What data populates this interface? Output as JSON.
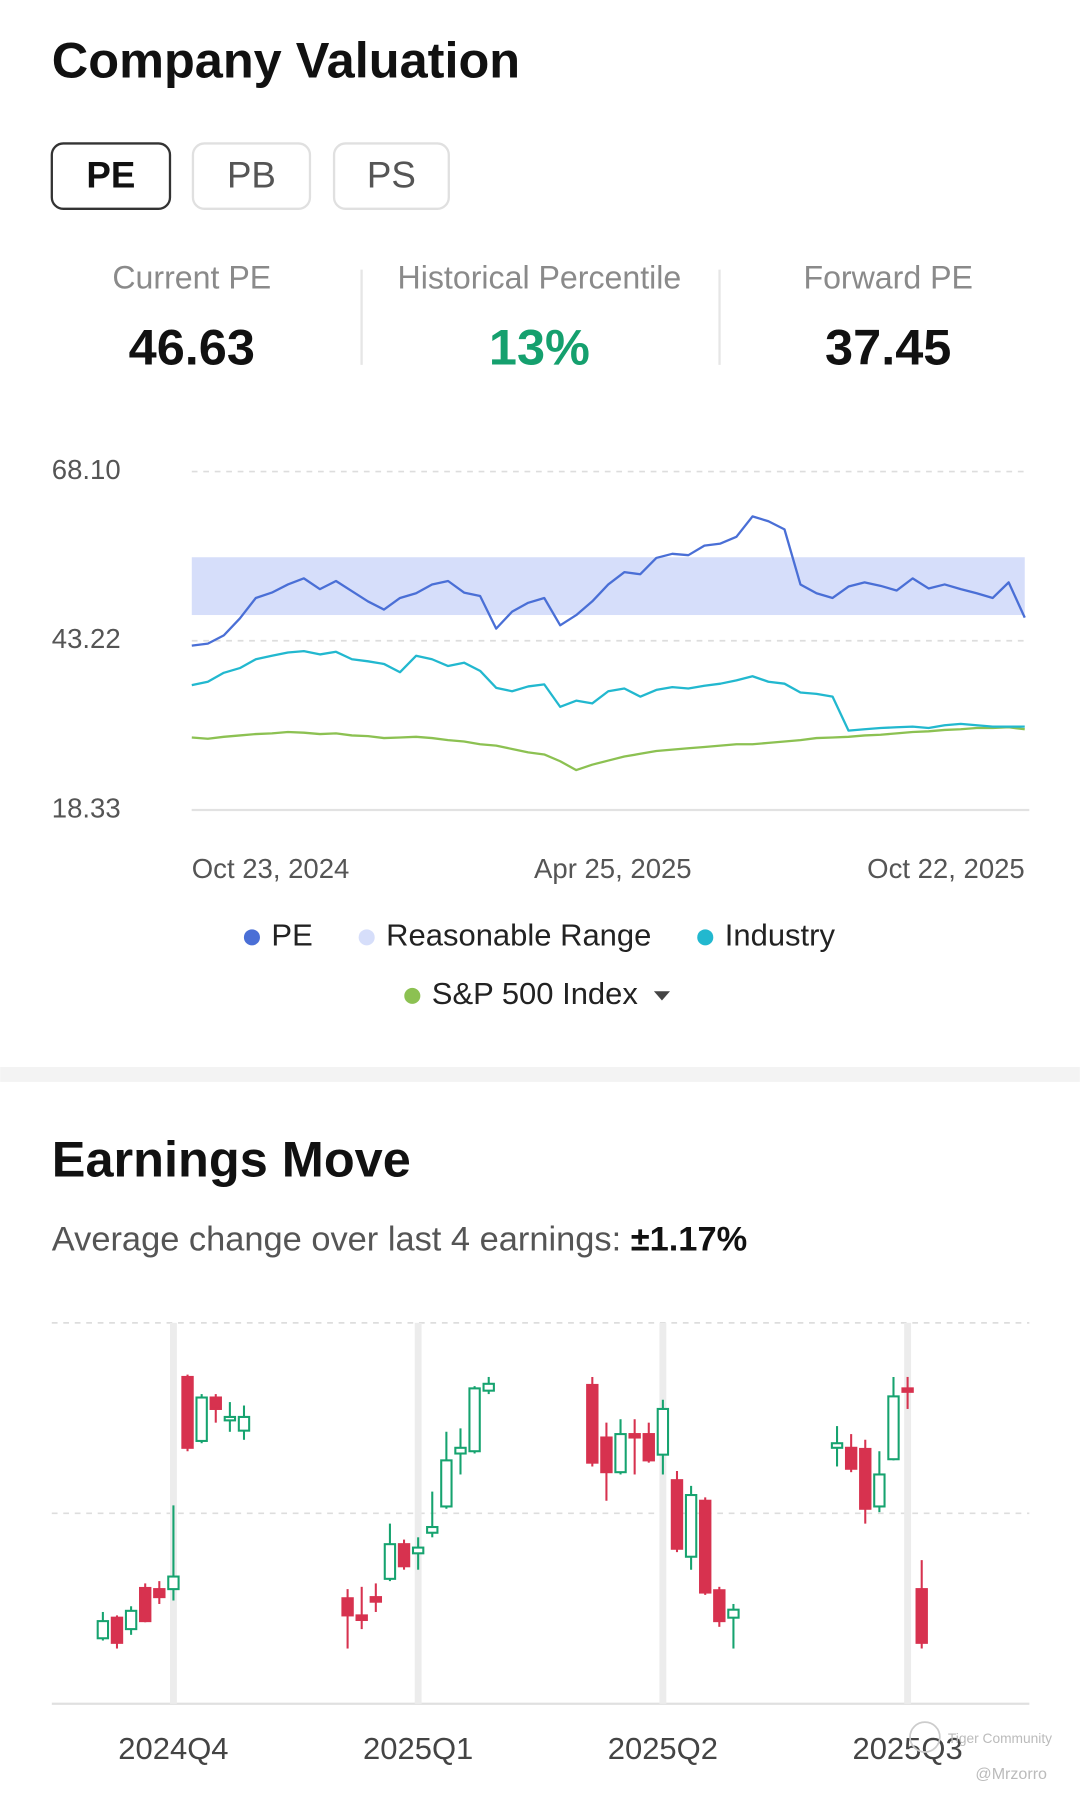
{
  "valuation": {
    "title": "Company Valuation",
    "tabs": [
      {
        "label": "PE",
        "selected": true
      },
      {
        "label": "PB"
      },
      {
        "label": "PS"
      }
    ],
    "stats": [
      {
        "label": "Current PE",
        "value": "46.63",
        "color": "#111111"
      },
      {
        "label": "Historical Percentile",
        "value": "13%",
        "color": "#15a06e"
      },
      {
        "label": "Forward PE",
        "value": "37.45",
        "color": "#111111"
      }
    ]
  },
  "earnings": {
    "title": "Earnings Move",
    "subtitle": "Average change over last 4 earnings:",
    "average": "±1.17%"
  },
  "watermark": {
    "brand": "Tiger Community",
    "user": "@Mrzorro"
  },
  "chart_data": [
    {
      "type": "line",
      "x": [
        "2024-10-23",
        "2024-10-30",
        "2024-11-06",
        "2024-11-13",
        "2024-11-20",
        "2024-11-27",
        "2024-12-04",
        "2024-12-11",
        "2024-12-18",
        "2024-12-25",
        "2025-01-01",
        "2025-01-08",
        "2025-01-15",
        "2025-01-22",
        "2025-01-29",
        "2025-02-05",
        "2025-02-12",
        "2025-02-19",
        "2025-02-26",
        "2025-03-05",
        "2025-03-12",
        "2025-03-19",
        "2025-03-26",
        "2025-04-02",
        "2025-04-09",
        "2025-04-16",
        "2025-04-23",
        "2025-04-30",
        "2025-05-07",
        "2025-05-14",
        "2025-05-21",
        "2025-05-28",
        "2025-06-04",
        "2025-06-11",
        "2025-06-18",
        "2025-06-25",
        "2025-07-02",
        "2025-07-09",
        "2025-07-16",
        "2025-07-23",
        "2025-07-30",
        "2025-08-06",
        "2025-08-13",
        "2025-08-20",
        "2025-08-27",
        "2025-09-03",
        "2025-09-10",
        "2025-09-17",
        "2025-09-24",
        "2025-10-01",
        "2025-10-08",
        "2025-10-15",
        "2025-10-22"
      ],
      "xlim": [
        "2024-10-23",
        "2025-10-22"
      ],
      "xticks": [
        {
          "value": "2024-10-23",
          "label": "Oct 23, 2024"
        },
        {
          "value": "2025-04-25",
          "label": "Apr 25, 2025"
        },
        {
          "value": "2025-10-22",
          "label": "Oct 22, 2025"
        }
      ],
      "ylim": [
        18.33,
        68.1
      ],
      "yticks": [
        18.33,
        43.22,
        {
          "value": 68.1,
          "label": "68.10"
        }
      ],
      "grid": true,
      "series": [
        {
          "name": "PE",
          "color": "#4a6fd6",
          "values": [
            42.5,
            42.8,
            44.0,
            46.5,
            49.5,
            50.3,
            51.5,
            52.4,
            50.8,
            52.0,
            50.5,
            49.0,
            47.8,
            49.5,
            50.2,
            51.5,
            52.0,
            50.3,
            49.8,
            45.0,
            47.5,
            48.8,
            49.5,
            45.5,
            47.0,
            49.0,
            51.5,
            53.3,
            53.0,
            55.4,
            56.0,
            55.8,
            57.2,
            57.5,
            58.5,
            61.5,
            60.8,
            59.6,
            51.5,
            50.2,
            49.5,
            51.2,
            51.8,
            51.3,
            50.6,
            52.4,
            50.9,
            51.5,
            50.8,
            50.2,
            49.5,
            51.8,
            46.63
          ]
        },
        {
          "name": "Reasonable Range",
          "color": "#d6defa",
          "range": [
            47.0,
            55.5
          ]
        },
        {
          "name": "Industry",
          "color": "#22b8cf",
          "values": [
            36.7,
            37.2,
            38.5,
            39.2,
            40.5,
            41.0,
            41.5,
            41.7,
            41.2,
            41.6,
            40.5,
            40.2,
            39.8,
            38.6,
            41.0,
            40.5,
            39.5,
            40.0,
            38.8,
            36.3,
            35.8,
            36.5,
            36.8,
            33.5,
            34.4,
            34.0,
            35.8,
            36.2,
            35.0,
            36.0,
            36.4,
            36.2,
            36.6,
            36.9,
            37.4,
            38.0,
            37.2,
            36.9,
            35.6,
            35.4,
            35.0,
            30.0,
            30.2,
            30.4,
            30.5,
            30.6,
            30.4,
            30.8,
            31.0,
            30.8,
            30.6,
            30.6,
            30.6
          ]
        },
        {
          "name": "S&P 500 Index",
          "color": "#8cc152",
          "values": [
            29.0,
            28.8,
            29.1,
            29.3,
            29.5,
            29.6,
            29.8,
            29.7,
            29.5,
            29.6,
            29.3,
            29.2,
            28.9,
            29.0,
            29.1,
            28.9,
            28.6,
            28.4,
            28.0,
            27.8,
            27.3,
            26.8,
            26.5,
            25.5,
            24.2,
            25.0,
            25.6,
            26.2,
            26.6,
            27.0,
            27.2,
            27.4,
            27.6,
            27.8,
            28.0,
            28.0,
            28.2,
            28.4,
            28.6,
            28.9,
            29.0,
            29.1,
            29.3,
            29.4,
            29.6,
            29.8,
            29.9,
            30.1,
            30.2,
            30.4,
            30.4,
            30.5,
            30.2
          ]
        }
      ]
    },
    {
      "type": "candlestick",
      "categories": [
        "2024Q4",
        "2025Q1",
        "2025Q2",
        "2025Q3"
      ],
      "ylim": [
        0,
        100
      ],
      "colors": {
        "up": "#16a36f",
        "down": "#d7324f"
      },
      "groups": [
        {
          "candles": [
            {
              "open": 17.2,
              "high": 24.1,
              "low": 16.6,
              "close": 21.7
            },
            {
              "open": 22.6,
              "high": 23.2,
              "low": 14.5,
              "close": 16.0
            },
            {
              "open": 19.6,
              "high": 25.6,
              "low": 18.1,
              "close": 24.4
            },
            {
              "open": 30.4,
              "high": 31.6,
              "low": 21.4,
              "close": 21.7
            },
            {
              "open": 30.1,
              "high": 32.2,
              "low": 26.2,
              "close": 28.0
            },
            {
              "open": 30.1,
              "high": 52.1,
              "low": 27.1,
              "close": 33.4
            },
            {
              "open": 85.8,
              "high": 86.4,
              "low": 66.3,
              "close": 67.2
            },
            {
              "open": 69.0,
              "high": 81.3,
              "low": 68.4,
              "close": 80.4
            },
            {
              "open": 80.4,
              "high": 81.3,
              "low": 73.8,
              "close": 77.4
            },
            {
              "open": 74.4,
              "high": 79.2,
              "low": 71.4,
              "close": 75.3
            },
            {
              "open": 71.7,
              "high": 78.3,
              "low": 69.3,
              "close": 75.3
            }
          ]
        },
        {
          "candles": [
            {
              "open": 27.7,
              "high": 30.1,
              "low": 14.5,
              "close": 23.2
            },
            {
              "open": 23.2,
              "high": 30.7,
              "low": 19.6,
              "close": 22.0
            },
            {
              "open": 28.0,
              "high": 31.6,
              "low": 24.1,
              "close": 26.8
            },
            {
              "open": 32.8,
              "high": 47.3,
              "low": 32.2,
              "close": 41.9
            },
            {
              "open": 41.9,
              "high": 43.1,
              "low": 35.2,
              "close": 36.1
            },
            {
              "open": 39.5,
              "high": 43.7,
              "low": 35.2,
              "close": 41.0
            },
            {
              "open": 44.9,
              "high": 55.7,
              "low": 43.7,
              "close": 46.4
            },
            {
              "open": 51.8,
              "high": 71.4,
              "low": 51.2,
              "close": 63.9
            },
            {
              "open": 65.7,
              "high": 72.3,
              "low": 60.2,
              "close": 67.2
            },
            {
              "open": 66.3,
              "high": 83.4,
              "low": 65.7,
              "close": 82.8
            },
            {
              "open": 82.2,
              "high": 85.8,
              "low": 81.3,
              "close": 84.0
            }
          ]
        },
        {
          "candles": [
            {
              "open": 83.7,
              "high": 85.8,
              "low": 62.3,
              "close": 63.3
            },
            {
              "open": 69.9,
              "high": 73.8,
              "low": 53.3,
              "close": 60.8
            },
            {
              "open": 60.8,
              "high": 74.7,
              "low": 60.2,
              "close": 70.8
            },
            {
              "open": 70.8,
              "high": 74.7,
              "low": 60.2,
              "close": 69.9
            },
            {
              "open": 70.8,
              "high": 73.8,
              "low": 63.3,
              "close": 63.9
            },
            {
              "open": 65.4,
              "high": 79.8,
              "low": 60.2,
              "close": 77.4
            },
            {
              "open": 58.7,
              "high": 61.1,
              "low": 39.8,
              "close": 40.7
            },
            {
              "open": 38.6,
              "high": 57.2,
              "low": 35.2,
              "close": 54.8
            },
            {
              "open": 53.3,
              "high": 54.2,
              "low": 28.6,
              "close": 29.2
            },
            {
              "open": 29.8,
              "high": 30.7,
              "low": 20.2,
              "close": 21.7
            },
            {
              "open": 22.6,
              "high": 26.2,
              "low": 14.5,
              "close": 24.7
            }
          ]
        },
        {
          "candles": [
            {
              "open": 67.2,
              "high": 72.9,
              "low": 62.3,
              "close": 68.4
            },
            {
              "open": 67.2,
              "high": 70.8,
              "low": 60.8,
              "close": 61.7
            },
            {
              "open": 66.9,
              "high": 69.3,
              "low": 47.3,
              "close": 51.2
            },
            {
              "open": 51.8,
              "high": 66.3,
              "low": 50.3,
              "close": 60.2
            },
            {
              "open": 64.2,
              "high": 85.8,
              "low": 63.9,
              "close": 80.7
            },
            {
              "open": 82.8,
              "high": 85.8,
              "low": 77.4,
              "close": 81.9
            },
            {
              "open": 30.1,
              "high": 37.7,
              "low": 14.5,
              "close": 16.0
            }
          ]
        }
      ]
    }
  ]
}
